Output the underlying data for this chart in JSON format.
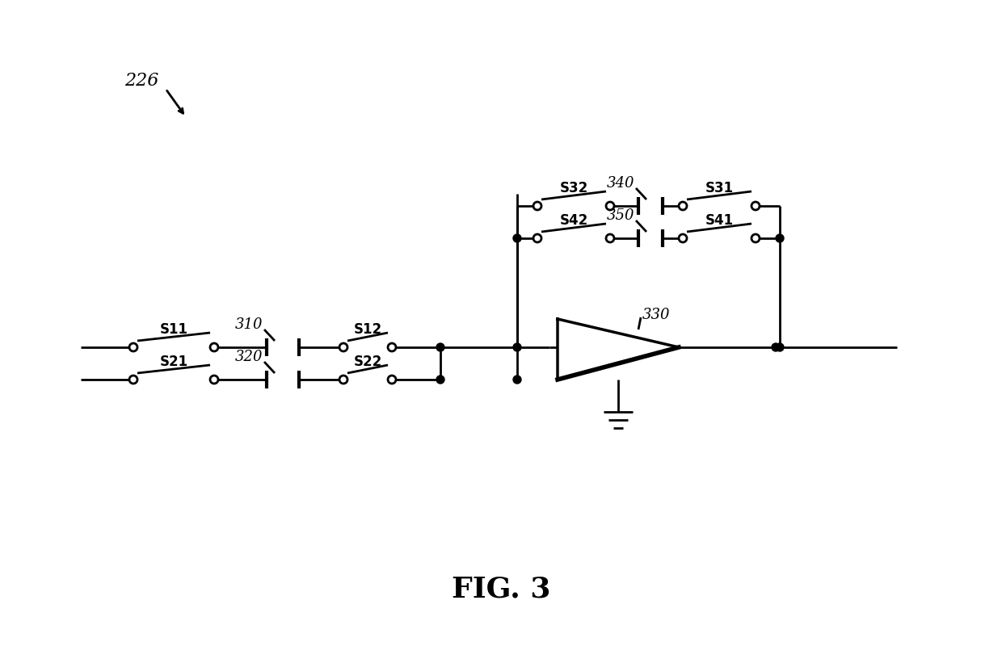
{
  "title": "FIG. 3",
  "label_226": "226",
  "label_310": "310",
  "label_320": "320",
  "label_330": "330",
  "label_340": "340",
  "label_350": "350",
  "label_S11": "S11",
  "label_S12": "S12",
  "label_S21": "S21",
  "label_S22": "S22",
  "label_S31": "S31",
  "label_S32": "S32",
  "label_S41": "S41",
  "label_S42": "S42",
  "bg_color": "#ffffff",
  "line_color": "#000000",
  "lw": 2.0
}
